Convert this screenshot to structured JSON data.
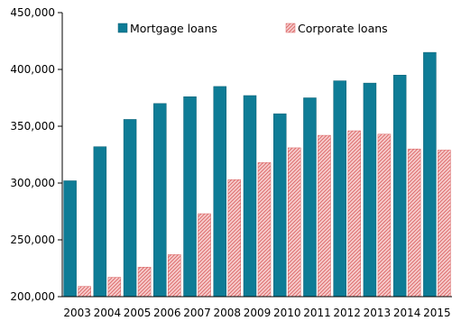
{
  "chart_data": {
    "type": "bar",
    "categories": [
      "2003",
      "2004",
      "2005",
      "2006",
      "2007",
      "2008",
      "2009",
      "2010",
      "2011",
      "2012",
      "2013",
      "2014",
      "2015"
    ],
    "series": [
      {
        "name": "Mortgage loans",
        "values": [
          302000,
          332000,
          356000,
          370000,
          376000,
          385000,
          377000,
          361000,
          375000,
          390000,
          388000,
          395000,
          415000
        ]
      },
      {
        "name": "Corporate loans",
        "values": [
          209000,
          217000,
          226000,
          237000,
          273000,
          303000,
          318000,
          331000,
          342000,
          346000,
          343000,
          330000,
          329000
        ]
      }
    ],
    "ylim": [
      200000,
      450000
    ],
    "yticks": [
      200000,
      250000,
      300000,
      350000,
      400000,
      450000
    ],
    "ytick_labels": [
      "200,000",
      "250,000",
      "300,000",
      "350,000",
      "400,000",
      "450,000"
    ],
    "grid": false,
    "legend_position": "top",
    "colors": {
      "mortgage_fill": "#0e7c96",
      "mortgage_stroke": "#0b5f73",
      "corporate_fill": "#f6caca",
      "corporate_stroke": "#d96060",
      "axis": "#000000"
    }
  }
}
